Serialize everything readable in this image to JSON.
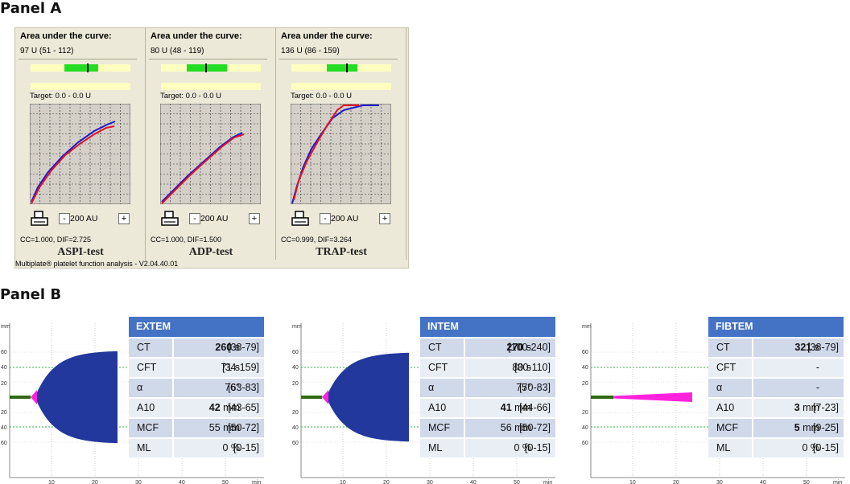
{
  "panel_a": {
    "title": "Panel A",
    "footer": "Multiplate® platelet function analysis - V2.04.40.01",
    "auc_label": "Area under the curve:",
    "target_label": "Target: 0.0 - 0.0 U",
    "scale_label": "200 AU",
    "minus_label": "-",
    "plus_label": "+",
    "tests": [
      {
        "name": "ASPI-test",
        "auc": "97 U (51 - 112)",
        "stats": "CC=1.000, DIF=2.725",
        "gauge": 0.6
      },
      {
        "name": "ADP-test",
        "auc": "80 U (48 - 119)",
        "stats": "CC=1.000, DIF=1.500",
        "gauge": 0.45
      },
      {
        "name": "TRAP-test",
        "auc": "136 U (86 - 159)",
        "stats": "CC=0.999, DIF=3.264",
        "gauge": 0.58
      }
    ]
  },
  "panel_b": {
    "title": "Panel B",
    "y_axis_unit": "mm",
    "x_axis_unit": "min",
    "y_ticks": [
      "60",
      "40",
      "20",
      "20",
      "40",
      "60"
    ],
    "x_ticks": [
      "10",
      "20",
      "30",
      "40",
      "50"
    ],
    "assays": [
      {
        "name": "EXTEM",
        "rows": [
          {
            "param": "CT",
            "value": "260",
            "unit": "s",
            "bold": true,
            "range": "[38-79]"
          },
          {
            "param": "CFT",
            "value": "71",
            "unit": "s",
            "bold": false,
            "range": "[34-159]"
          },
          {
            "param": "α",
            "value": "76°",
            "unit": "",
            "bold": false,
            "range": "[63-83]"
          },
          {
            "param": "A10",
            "value": "42",
            "unit": "mm",
            "bold": true,
            "range": "[43-65]"
          },
          {
            "param": "MCF",
            "value": "55",
            "unit": "mm",
            "bold": false,
            "range": "[50-72]"
          },
          {
            "param": "ML",
            "value": "0",
            "unit": "%",
            "bold": false,
            "range": "[0-15]"
          }
        ]
      },
      {
        "name": "INTEM",
        "rows": [
          {
            "param": "CT",
            "value": "270",
            "unit": "s",
            "bold": true,
            "range": "[100-240]"
          },
          {
            "param": "CFT",
            "value": "80",
            "unit": "s",
            "bold": false,
            "range": "[30-110]"
          },
          {
            "param": "α",
            "value": "75°",
            "unit": "",
            "bold": false,
            "range": "[70-83]"
          },
          {
            "param": "A10",
            "value": "41",
            "unit": "mm",
            "bold": true,
            "range": "[44-66]"
          },
          {
            "param": "MCF",
            "value": "56",
            "unit": "mm",
            "bold": false,
            "range": "[50-72]"
          },
          {
            "param": "ML",
            "value": "0",
            "unit": "%",
            "bold": false,
            "range": "[0-15]"
          }
        ]
      },
      {
        "name": "FIBTEM",
        "rows": [
          {
            "param": "CT",
            "value": "321",
            "unit": "s",
            "bold": true,
            "range": "[38-79]"
          },
          {
            "param": "CFT",
            "value": "-",
            "unit": "",
            "bold": false,
            "range": ""
          },
          {
            "param": "α",
            "value": "-",
            "unit": "",
            "bold": false,
            "range": ""
          },
          {
            "param": "A10",
            "value": "3",
            "unit": "mm",
            "bold": true,
            "range": "[7-23]"
          },
          {
            "param": "MCF",
            "value": "5",
            "unit": "mm",
            "bold": true,
            "range": "[9-25]"
          },
          {
            "param": "ML",
            "value": "0",
            "unit": "%",
            "bold": false,
            "range": "[0-15]"
          }
        ]
      }
    ]
  },
  "colors": {
    "gauge_green": "#22dd22",
    "gauge_track": "#ffffc0",
    "curve_blue": "#1a1acc",
    "curve_red": "#e0102a",
    "trace_fill": "#23389c",
    "trace_pink": "#ff22dd",
    "baseline_green": "#2e6b12",
    "table_header": "#4472c4"
  }
}
